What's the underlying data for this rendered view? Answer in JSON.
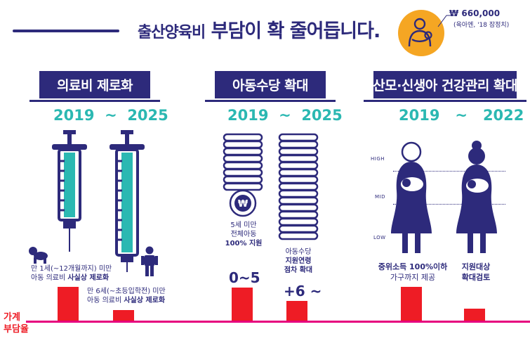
{
  "header": {
    "title_prefix": "출산양육비",
    "title_main": "부담이 확 줄어듭니다.",
    "price": "₩ 660,000",
    "price_note": "(육아엔, '18 잠정치)"
  },
  "sections": [
    {
      "banner": "의료비 제로화",
      "year_start": "2019",
      "tilde": "~",
      "year_end": "2025",
      "caption_a_line1": "만 1세(~12개월까지) 미만",
      "caption_a_line2_normal": "아동 의료비 ",
      "caption_a_line2_bold": "사실상 제로화",
      "caption_b_line1": "만 6세(~초등입학전) 미만",
      "caption_b_line2_normal": "아동 의료비 ",
      "caption_b_line2_bold": "사실상 제로화"
    },
    {
      "banner": "아동수당 확대",
      "year_start": "2019",
      "tilde": "~",
      "year_end": "2025",
      "coin_symbol": "₩",
      "caption_a_line1": "5세 미만",
      "caption_a_line2": "전체아동",
      "caption_a_line3": "100% 지원",
      "caption_b_line1": "아동수당",
      "caption_b_line2": "지원연령",
      "caption_b_line3": "점차 확대",
      "age_a": "0~5",
      "age_b": "+6 ~"
    },
    {
      "banner": "산모·신생아 건강관리 확대",
      "year_start": "2019",
      "tilde": "~",
      "year_end": "2022",
      "level_high": "HIGH",
      "level_mid": "MID",
      "level_low": "LOW",
      "caption_a_line1": "중위소득 100%이하",
      "caption_a_line2": "가구까지 제공",
      "caption_b_line1": "지원대상",
      "caption_b_line2": "확대검토"
    }
  ],
  "bottom_label_line1": "가계",
  "bottom_label_line2": "부담율",
  "colors": {
    "navy": "#2d2a7b",
    "teal": "#2bb8b2",
    "red": "#ee1c25",
    "magenta": "#e6007e",
    "orange": "#f5a623"
  }
}
